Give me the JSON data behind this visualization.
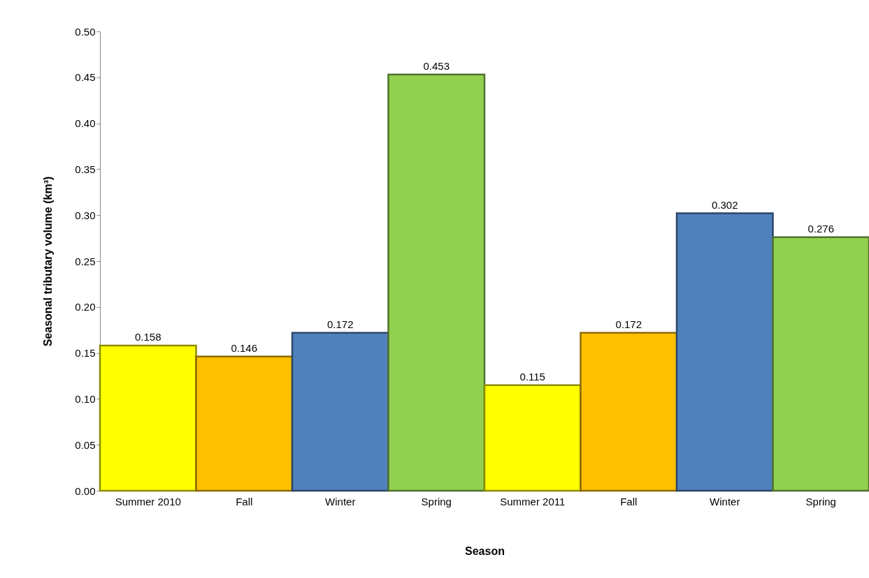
{
  "chart_data": {
    "type": "bar",
    "xlabel": "Season",
    "ylabel": "Seasonal tributary volume (km³)",
    "categories": [
      "Summer 2010",
      "Fall",
      "Winter",
      "Spring",
      "Summer 2011",
      "Fall",
      "Winter",
      "Spring"
    ],
    "values": [
      0.158,
      0.146,
      0.172,
      0.453,
      0.115,
      0.172,
      0.302,
      0.276
    ],
    "colors": [
      "#ffff00",
      "#ffc000",
      "#4f81bd",
      "#92d050",
      "#ffff00",
      "#ffc000",
      "#4f81bd",
      "#92d050"
    ],
    "data_labels": true,
    "grid": false,
    "legend": false,
    "ylim": [
      0,
      0.5
    ],
    "yticks": [
      {
        "value": 0,
        "label": "0.00"
      },
      {
        "value": 0.05,
        "label": "0.05"
      },
      {
        "value": 0.1,
        "label": "0.10"
      },
      {
        "value": 0.15,
        "label": "0.15"
      },
      {
        "value": 0.2,
        "label": "0.20"
      },
      {
        "value": 0.25,
        "label": "0.25"
      },
      {
        "value": 0.3,
        "label": "0.30"
      },
      {
        "value": 0.35,
        "label": "0.35"
      },
      {
        "value": 0.4,
        "label": "0.40"
      },
      {
        "value": 0.45,
        "label": "0.45"
      },
      {
        "value": 0.5,
        "label": "0.50"
      }
    ]
  }
}
